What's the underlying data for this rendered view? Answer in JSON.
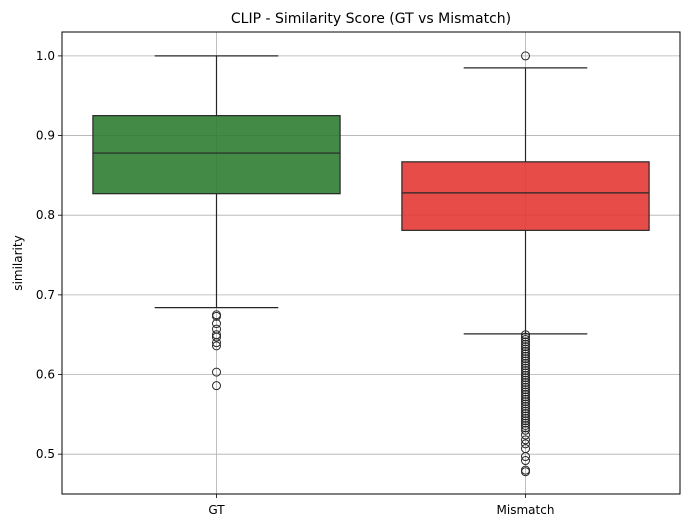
{
  "chart_data": {
    "type": "box",
    "title": "CLIP - Similarity Score (GT vs Mismatch)",
    "xlabel": "",
    "ylabel": "similarity",
    "ylim": [
      0.45,
      1.03
    ],
    "yticks": [
      0.5,
      0.6,
      0.7,
      0.8,
      0.9,
      1.0
    ],
    "ytick_labels": [
      "0.5",
      "0.6",
      "0.7",
      "0.8",
      "0.9",
      "1.0"
    ],
    "grid": true,
    "categories": [
      "GT",
      "Mismatch"
    ],
    "boxes": [
      {
        "category": "GT",
        "color": "#2e7d32",
        "whisker_low": 0.684,
        "q1": 0.827,
        "median": 0.878,
        "q3": 0.925,
        "whisker_high": 1.0,
        "outliers": [
          0.675,
          0.673,
          0.664,
          0.657,
          0.65,
          0.647,
          0.64,
          0.636,
          0.603,
          0.586
        ]
      },
      {
        "category": "Mismatch",
        "color": "#e53935",
        "whisker_low": 0.651,
        "q1": 0.781,
        "median": 0.828,
        "q3": 0.867,
        "whisker_high": 0.985,
        "outliers_high": [
          1.0
        ],
        "outliers_dense_range": [
          0.528,
          0.65
        ],
        "outliers": [
          0.524,
          0.518,
          0.513,
          0.507,
          0.497,
          0.492,
          0.48,
          0.478
        ]
      }
    ]
  }
}
